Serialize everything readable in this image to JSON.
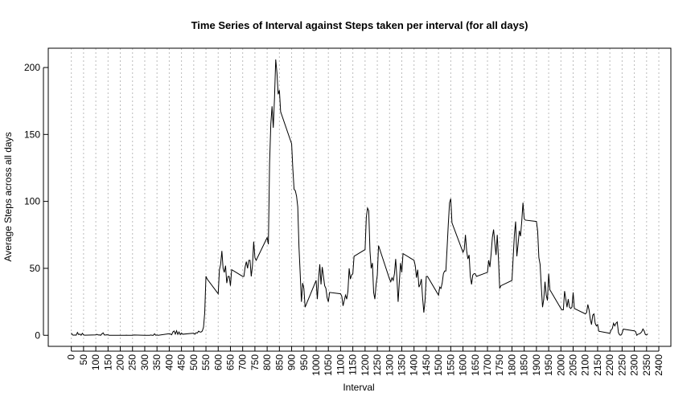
{
  "chart_data": {
    "type": "line",
    "title": "Time Series of Interval against Steps taken per interval (for all days)",
    "x_label": "Interval",
    "y_label": "Average Steps across all days",
    "color": "#000000",
    "grid": "x",
    "xlim": [
      -94.2,
      2449.2
    ],
    "ylim": [
      -8.25,
      214.4
    ],
    "xticks": [
      0,
      50,
      100,
      150,
      200,
      250,
      300,
      350,
      400,
      450,
      500,
      550,
      600,
      650,
      700,
      750,
      800,
      850,
      900,
      950,
      1000,
      1050,
      1100,
      1150,
      1200,
      1250,
      1300,
      1350,
      1400,
      1450,
      1500,
      1550,
      1600,
      1650,
      1700,
      1750,
      1800,
      1850,
      1900,
      1950,
      2000,
      2050,
      2100,
      2150,
      2200,
      2250,
      2300,
      2350,
      2400
    ],
    "yticks": [
      0,
      50,
      100,
      150,
      200
    ],
    "x": [
      0,
      5,
      10,
      15,
      20,
      25,
      30,
      35,
      40,
      45,
      50,
      55,
      100,
      105,
      110,
      115,
      120,
      125,
      130,
      135,
      140,
      145,
      150,
      155,
      200,
      205,
      210,
      215,
      220,
      225,
      230,
      235,
      240,
      245,
      250,
      255,
      300,
      305,
      310,
      315,
      320,
      325,
      330,
      335,
      340,
      345,
      350,
      355,
      400,
      405,
      410,
      415,
      420,
      425,
      430,
      435,
      440,
      445,
      450,
      455,
      500,
      505,
      510,
      515,
      520,
      525,
      530,
      535,
      540,
      545,
      550,
      555,
      600,
      605,
      610,
      615,
      620,
      625,
      630,
      635,
      640,
      645,
      650,
      655,
      700,
      705,
      710,
      715,
      720,
      725,
      730,
      735,
      740,
      745,
      750,
      755,
      800,
      805,
      810,
      815,
      820,
      825,
      830,
      835,
      840,
      845,
      850,
      855,
      900,
      905,
      910,
      915,
      920,
      925,
      930,
      935,
      940,
      945,
      950,
      955,
      1000,
      1005,
      1010,
      1015,
      1020,
      1025,
      1030,
      1035,
      1040,
      1045,
      1050,
      1055,
      1100,
      1105,
      1110,
      1115,
      1120,
      1125,
      1130,
      1135,
      1140,
      1145,
      1150,
      1155,
      1200,
      1205,
      1210,
      1215,
      1220,
      1225,
      1230,
      1235,
      1240,
      1245,
      1250,
      1255,
      1300,
      1305,
      1310,
      1315,
      1320,
      1325,
      1330,
      1335,
      1340,
      1345,
      1350,
      1355,
      1400,
      1405,
      1410,
      1415,
      1420,
      1425,
      1430,
      1435,
      1440,
      1445,
      1450,
      1455,
      1500,
      1505,
      1510,
      1515,
      1520,
      1525,
      1530,
      1535,
      1540,
      1545,
      1550,
      1555,
      1600,
      1605,
      1610,
      1615,
      1620,
      1625,
      1630,
      1635,
      1640,
      1645,
      1650,
      1655,
      1700,
      1705,
      1710,
      1715,
      1720,
      1725,
      1730,
      1735,
      1740,
      1745,
      1750,
      1755,
      1800,
      1805,
      1810,
      1815,
      1820,
      1825,
      1830,
      1835,
      1840,
      1845,
      1850,
      1855,
      1900,
      1905,
      1910,
      1915,
      1920,
      1925,
      1930,
      1935,
      1940,
      1945,
      1950,
      1955,
      2000,
      2005,
      2010,
      2015,
      2020,
      2025,
      2030,
      2035,
      2040,
      2045,
      2050,
      2055,
      2100,
      2105,
      2110,
      2115,
      2120,
      2125,
      2130,
      2135,
      2140,
      2145,
      2150,
      2155,
      2200,
      2205,
      2210,
      2215,
      2220,
      2225,
      2230,
      2235,
      2240,
      2245,
      2250,
      2255,
      2300,
      2305,
      2310,
      2315,
      2320,
      2325,
      2330,
      2335,
      2340,
      2345,
      2350,
      2355
    ],
    "values": [
      1.7,
      0.3,
      0.1,
      0.2,
      0.1,
      2.1,
      0.5,
      0.9,
      0,
      1.5,
      0.3,
      0.1,
      0.3,
      0.7,
      0.2,
      0.3,
      0,
      1.1,
      1.8,
      0.2,
      0.2,
      0.4,
      0.3,
      0,
      0,
      0,
      0,
      0,
      0,
      0.1,
      0,
      0,
      0,
      0,
      0,
      0.2,
      0,
      0,
      0,
      0,
      0,
      0.2,
      0,
      0,
      1.1,
      0,
      0.2,
      0,
      1.2,
      0.9,
      0.4,
      2.5,
      3.2,
      0.9,
      3.4,
      0.7,
      2.5,
      0.5,
      1.7,
      0.8,
      1.6,
      0.8,
      2.0,
      1.7,
      3.1,
      2.5,
      2.4,
      3.2,
      6,
      17,
      44,
      42,
      31,
      49,
      53,
      63,
      50,
      47,
      52,
      39,
      44,
      44,
      37,
      49,
      44,
      44,
      51,
      55,
      50,
      56,
      56,
      44,
      52,
      70,
      58,
      56,
      73,
      68,
      129,
      158,
      171,
      155,
      177,
      206,
      196,
      180,
      183,
      167,
      143,
      124,
      109,
      108,
      104,
      96,
      66,
      46,
      25,
      39,
      35,
      21,
      41,
      27,
      42,
      53,
      38,
      51,
      44,
      37,
      35,
      28,
      25,
      32,
      31,
      29,
      22,
      26,
      30,
      27,
      33,
      50,
      42,
      45,
      46,
      59,
      64,
      88,
      95,
      93,
      63,
      50,
      54,
      32,
      27,
      38,
      45,
      67,
      42,
      40,
      43,
      41,
      46,
      57,
      43,
      25,
      40,
      54,
      47,
      61,
      56,
      52,
      43,
      49,
      36,
      38,
      42,
      28,
      17,
      26,
      44,
      44,
      30,
      36,
      35,
      39,
      46,
      48,
      48,
      65,
      83,
      99,
      102,
      84,
      62,
      64,
      75,
      63,
      57,
      60,
      44,
      38,
      45,
      46,
      46,
      44,
      47,
      56,
      51,
      61,
      73,
      79,
      69,
      60,
      75,
      57,
      35,
      37,
      41,
      58,
      75,
      85,
      59,
      68,
      78,
      74,
      85,
      99,
      87,
      86,
      85,
      78,
      58,
      53,
      36,
      21,
      27,
      40,
      30,
      26,
      46,
      34,
      20,
      19,
      19,
      33,
      27,
      21,
      27,
      21,
      20,
      21,
      32,
      20,
      16,
      17,
      23,
      19,
      12,
      8,
      15,
      16,
      9,
      7,
      8,
      3,
      1.5,
      4,
      5,
      9,
      7,
      9,
      10,
      2,
      0.3,
      0.1,
      1.6,
      4.6,
      3.3,
      2.8,
      0,
      0.8,
      1,
      1.6,
      2.6,
      4.7,
      3.3,
      0.6,
      0.2,
      1.1
    ]
  }
}
